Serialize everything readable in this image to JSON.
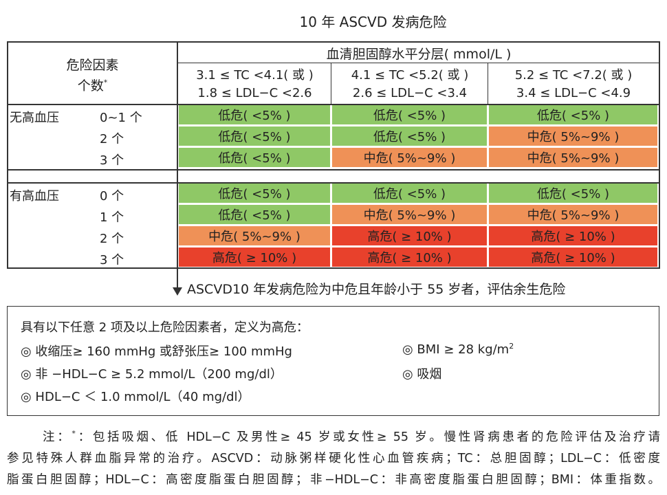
{
  "title": "10 年 ASCVD 发病危险",
  "table": {
    "corner": {
      "line1": "危险因素",
      "line2": "个数",
      "mark": "*"
    },
    "group_header": "血清胆固醇水平分层( mmol/L )",
    "columns": [
      {
        "line1": "3.1 ≤ TC <4.1( 或 )",
        "line2": "1.8 ≤ LDL−C <2.6"
      },
      {
        "line1": "4.1 ≤ TC <5.2( 或 )",
        "line2": "2.6 ≤ LDL−C <3.4"
      },
      {
        "line1": "5.2 ≤ TC <7.2( 或 )",
        "line2": "3.4 ≤ LDL−C <4.9"
      }
    ],
    "groups": [
      {
        "label": "无高血压",
        "rows": [
          {
            "count": "0~1 个",
            "cells": [
              {
                "text": "低危( <5% )",
                "color": "#8fc866"
              },
              {
                "text": "低危( <5% )",
                "color": "#8fc866"
              },
              {
                "text": "低危( <5% )",
                "color": "#8fc866"
              }
            ]
          },
          {
            "count": "2 个",
            "cells": [
              {
                "text": "低危( <5% )",
                "color": "#8fc866"
              },
              {
                "text": "低危( <5% )",
                "color": "#8fc866"
              },
              {
                "text": "中危( 5%~9% )",
                "color": "#ef9157"
              }
            ]
          },
          {
            "count": "3 个",
            "cells": [
              {
                "text": "低危( <5% )",
                "color": "#8fc866"
              },
              {
                "text": "中危( 5%~9% )",
                "color": "#ef9157"
              },
              {
                "text": "中危( 5%~9% )",
                "color": "#ef9157"
              }
            ]
          }
        ]
      },
      {
        "label": "有高血压",
        "rows": [
          {
            "count": "0 个",
            "cells": [
              {
                "text": "低危( <5% )",
                "color": "#8fc866"
              },
              {
                "text": "低危( <5% )",
                "color": "#8fc866"
              },
              {
                "text": "低危( <5% )",
                "color": "#8fc866"
              }
            ]
          },
          {
            "count": "1 个",
            "cells": [
              {
                "text": "低危( <5% )",
                "color": "#8fc866"
              },
              {
                "text": "中危( 5%~9% )",
                "color": "#ef9157"
              },
              {
                "text": "中危( 5%~9% )",
                "color": "#ef9157"
              }
            ]
          },
          {
            "count": "2 个",
            "cells": [
              {
                "text": "中危( 5%~9% )",
                "color": "#ef9157"
              },
              {
                "text": "高危( ≥ 10% )",
                "color": "#e8412c"
              },
              {
                "text": "高危( ≥ 10% )",
                "color": "#e8412c"
              }
            ]
          },
          {
            "count": "3 个",
            "cells": [
              {
                "text": "高危( ≥ 10% )",
                "color": "#e8412c"
              },
              {
                "text": "高危( ≥ 10% )",
                "color": "#e8412c"
              },
              {
                "text": "高危( ≥ 10% )",
                "color": "#e8412c"
              }
            ]
          }
        ]
      }
    ]
  },
  "arrow_text": "ASCVD10 年发病危险为中危且年龄小于 55 岁者，评估余生危险",
  "box": {
    "heading": "具有以下任意 2 项及以上危险因素者，定义为高危：",
    "left_items": [
      "◎ 收缩压≥ 160 mmHg 或舒张压≥ 100 mmHg",
      "◎ 非 −HDL−C ≥ 5.2 mmol/L（200 mg/dl）",
      "◎ HDL−C ＜ 1.0 mmol/L（40 mg/dl）"
    ],
    "right_items": [
      {
        "text": "◎ BMI ≥ 28 kg/m",
        "sup": "2"
      },
      {
        "text": "◎ 吸烟"
      }
    ]
  },
  "note": {
    "prefix": "注：",
    "mark": "*",
    "lines": [
      "：包括吸烟、低 HDL−C 及男性≥ 45 岁或女性≥ 55 岁。慢性肾病患者的危险评估及治疗请",
      "参见特殊人群血脂异常的治疗。ASCVD：动脉粥样硬化性心血管疾病；TC：总胆固醇；LDL−C：低密度",
      "脂蛋白胆固醇；HDL−C：高密度脂蛋白胆固醇；非−HDL−C：非高密度脂蛋白胆固醇；BMI：体重指数。"
    ]
  }
}
